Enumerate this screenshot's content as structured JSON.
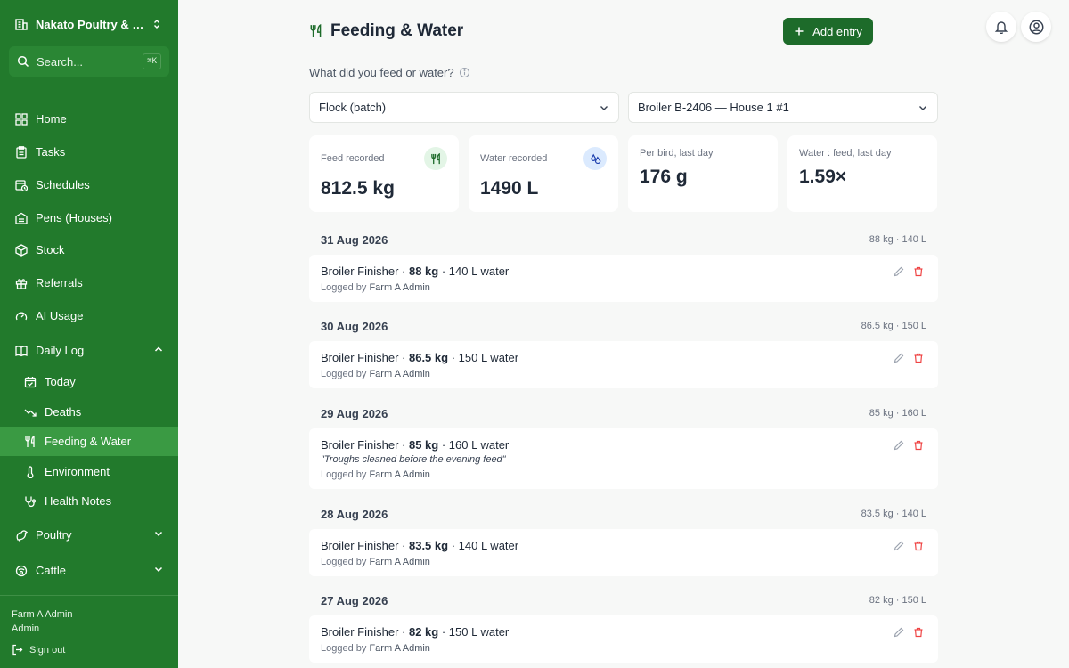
{
  "sidebar": {
    "farm_name": "Nakato Poultry & Dairy",
    "search_placeholder": "Search...",
    "search_shortcut": "⌘K",
    "nav": {
      "home": "Home",
      "tasks": "Tasks",
      "schedules": "Schedules",
      "pens": "Pens (Houses)",
      "stock": "Stock",
      "referrals": "Referrals",
      "ai_usage": "AI Usage",
      "daily_log": "Daily Log",
      "today": "Today",
      "deaths": "Deaths",
      "feeding_water": "Feeding & Water",
      "environment": "Environment",
      "health_notes": "Health Notes",
      "poultry": "Poultry",
      "cattle": "Cattle"
    },
    "user_name": "Farm A Admin",
    "user_role": "Admin",
    "sign_out": "Sign out"
  },
  "header": {
    "title": "Feeding & Water",
    "add_entry": "Add entry"
  },
  "filter": {
    "question": "What did you feed or water?",
    "type_value": "Flock (batch)",
    "batch_value": "Broiler B-2406 — House 1 #1"
  },
  "stats": {
    "feed_label": "Feed recorded",
    "feed_value": "812.5 kg",
    "water_label": "Water recorded",
    "water_value": "1490 L",
    "per_bird_label": "Per bird, last day",
    "per_bird_value": "176 g",
    "ratio_label": "Water : feed, last day",
    "ratio_value": "1.59×"
  },
  "logged_by_prefix": "Logged by",
  "days": [
    {
      "date": "31 Aug 2026",
      "summary": "88 kg · 140 L",
      "entry": {
        "feed": "Broiler Finisher",
        "amount": "88 kg",
        "water": "140 L water",
        "note": "",
        "by": "Farm A Admin"
      }
    },
    {
      "date": "30 Aug 2026",
      "summary": "86.5 kg · 150 L",
      "entry": {
        "feed": "Broiler Finisher",
        "amount": "86.5 kg",
        "water": "150 L water",
        "note": "",
        "by": "Farm A Admin"
      }
    },
    {
      "date": "29 Aug 2026",
      "summary": "85 kg · 160 L",
      "entry": {
        "feed": "Broiler Finisher",
        "amount": "85 kg",
        "water": "160 L water",
        "note": "\"Troughs cleaned before the evening feed\"",
        "by": "Farm A Admin"
      }
    },
    {
      "date": "28 Aug 2026",
      "summary": "83.5 kg · 140 L",
      "entry": {
        "feed": "Broiler Finisher",
        "amount": "83.5 kg",
        "water": "140 L water",
        "note": "",
        "by": "Farm A Admin"
      }
    },
    {
      "date": "27 Aug 2026",
      "summary": "82 kg · 150 L",
      "entry": {
        "feed": "Broiler Finisher",
        "amount": "82 kg",
        "water": "150 L water",
        "note": "",
        "by": "Farm A Admin"
      }
    }
  ],
  "colors": {
    "sidebar_bg": "#227a2c",
    "sidebar_active": "#3a9a43",
    "primary_button": "#1d6b2a",
    "feed_icon_bg": "#e3f5e6",
    "water_icon_bg": "#dbeafe",
    "delete_icon": "#ef4444"
  }
}
